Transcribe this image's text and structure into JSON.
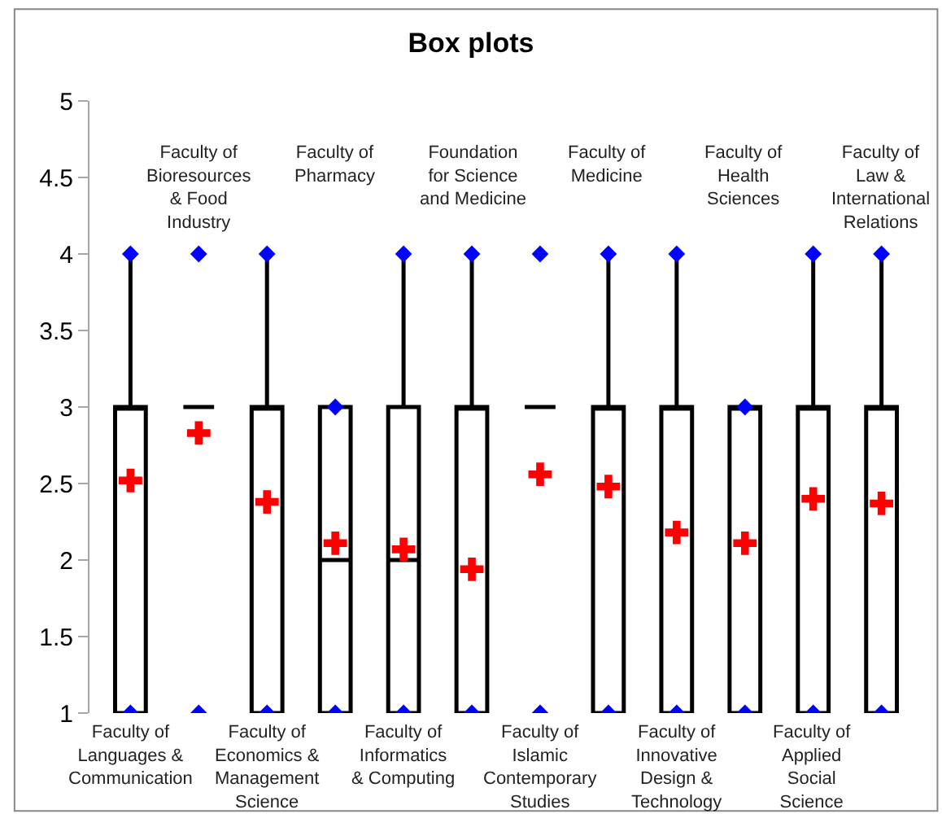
{
  "chart_data": {
    "type": "box",
    "title": "Box plots",
    "categories": [
      "Faculty of Languages & Communication",
      "Faculty of Bioresources & Food Industry",
      "Faculty of Economics & Management Science",
      "Faculty of Pharmacy",
      "Faculty of Informatics & Computing",
      "Foundation for Science and Medicine",
      "Faculty of Islamic Contemporary Studies",
      "Faculty of Medicine",
      "Faculty of Innovative Design & Technology",
      "Faculty of Health Sciences",
      "Faculty of Applied Social Science",
      "Faculty of Law & International Relations"
    ],
    "series": [
      {
        "color": "#000000",
        "boxes": [
          {
            "low": 1,
            "q1": 1,
            "median": 3,
            "q3": 3,
            "high": 4
          },
          {
            "low": 3,
            "q1": 3,
            "median": 3,
            "q3": 3,
            "high": 3
          },
          {
            "low": 1,
            "q1": 1,
            "median": 3,
            "q3": 3,
            "high": 4
          },
          {
            "low": 1,
            "q1": 1,
            "median": 2,
            "q3": 3,
            "high": 3
          },
          {
            "low": 1,
            "q1": 1,
            "median": 2,
            "q3": 3,
            "high": 4
          },
          {
            "low": 1,
            "q1": 1,
            "median": 3,
            "q3": 3,
            "high": 4
          },
          {
            "low": 3,
            "q1": 3,
            "median": 3,
            "q3": 3,
            "high": 3
          },
          {
            "low": 1,
            "q1": 1,
            "median": 3,
            "q3": 3,
            "high": 4
          },
          {
            "low": 1,
            "q1": 1,
            "median": 3,
            "q3": 3,
            "high": 4
          },
          {
            "low": 1,
            "q1": 1,
            "median": 3,
            "q3": 3,
            "high": 3
          },
          {
            "low": 1,
            "q1": 1,
            "median": 3,
            "q3": 3,
            "high": 4
          },
          {
            "low": 1,
            "q1": 1,
            "median": 3,
            "q3": 3,
            "high": 4
          }
        ]
      },
      {
        "type": "scatter",
        "marker": "diamond",
        "color": "#0000ff",
        "values": [
          4,
          4,
          4,
          3,
          4,
          4,
          4,
          4,
          4,
          3,
          4,
          4
        ]
      },
      {
        "type": "scatter",
        "marker": "diamond",
        "color": "#0000ff",
        "values": [
          1,
          1,
          1,
          1,
          1,
          1,
          1,
          1,
          1,
          1,
          1,
          1
        ]
      },
      {
        "type": "scatter",
        "marker": "cross",
        "color": "#ff0000",
        "values": [
          2.52,
          2.83,
          2.38,
          2.11,
          2.07,
          1.94,
          2.56,
          2.48,
          2.18,
          2.11,
          2.4,
          2.37
        ]
      }
    ],
    "ylim": [
      1,
      5
    ],
    "yticks": [
      1,
      1.5,
      2,
      2.5,
      3,
      3.5,
      4,
      4.5,
      5
    ],
    "grid": false
  }
}
